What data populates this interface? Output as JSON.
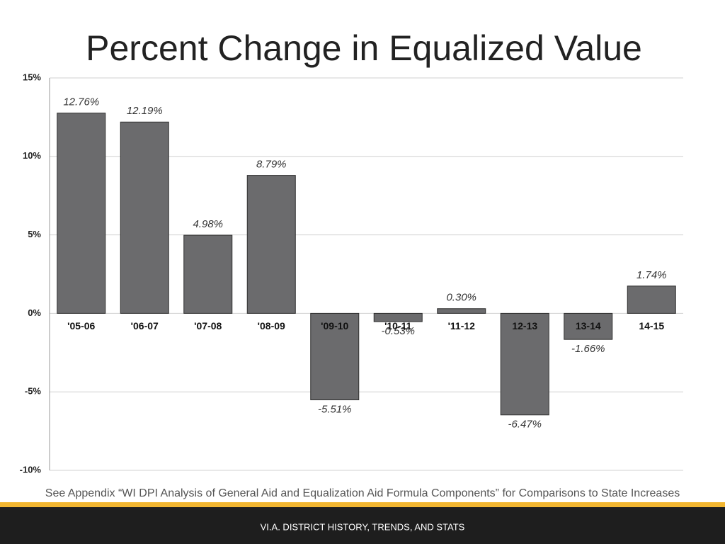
{
  "chart_data": {
    "type": "bar",
    "title": "Percent Change in Equalized Value",
    "categories": [
      "'05-06",
      "'06-07",
      "'07-08",
      "'08-09",
      "'09-10",
      "'10-11",
      "'11-12",
      "12-13",
      "13-14",
      "14-15"
    ],
    "values": [
      12.76,
      12.19,
      4.98,
      8.79,
      -5.51,
      -0.53,
      0.3,
      -6.47,
      -1.66,
      1.74
    ],
    "value_labels": [
      "12.76%",
      "12.19%",
      "4.98%",
      "8.79%",
      "-5.51%",
      "-0.53%",
      "0.30%",
      "-6.47%",
      "-1.66%",
      "1.74%"
    ],
    "color": "#6b6b6d",
    "ylim": [
      -10,
      15
    ],
    "yticks": [
      {
        "value": 15,
        "label": "15%"
      },
      {
        "value": 10,
        "label": "10%"
      },
      {
        "value": 5,
        "label": "5%"
      },
      {
        "value": 0,
        "label": "0%"
      },
      {
        "value": -5,
        "label": "-5%"
      },
      {
        "value": -10,
        "label": "-10%"
      }
    ],
    "grid": true
  },
  "footnote": "See Appendix “WI DPI Analysis of General Aid and Equalization Aid Formula Components” for Comparisons to State Increases",
  "footer": "VI.A. DISTRICT HISTORY, TRENDS, AND STATS"
}
